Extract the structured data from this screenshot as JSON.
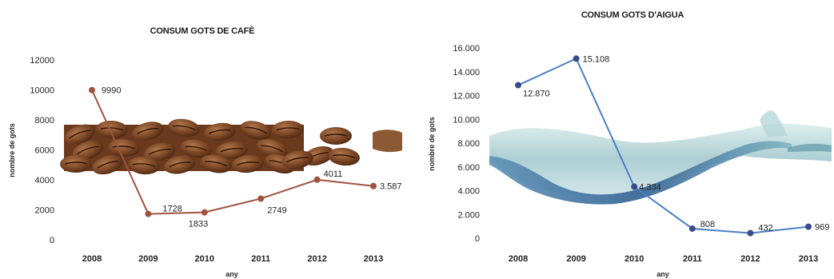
{
  "chart_data": [
    {
      "type": "line",
      "title": "CONSUM GOTS DE CAFÈ",
      "xlabel": "any",
      "ylabel": "nombre de gots",
      "categories": [
        "2008",
        "2009",
        "2010",
        "2011",
        "2012",
        "2013"
      ],
      "values": [
        9990,
        1728,
        1833,
        2749,
        4011,
        3587
      ],
      "data_labels": [
        "9990",
        "1728",
        "1833",
        "2749",
        "4011",
        "3.587"
      ],
      "ylim": [
        0,
        12000
      ],
      "y_ticks": [
        "0",
        "2000",
        "4000",
        "6000",
        "8000",
        "10000",
        "12000"
      ],
      "line_color": "#a0523f",
      "grid": false,
      "background_image": "coffee-beans"
    },
    {
      "type": "line",
      "title": "CONSUM GOTS D'AIGUA",
      "xlabel": "any",
      "ylabel": "nombre de gots",
      "categories": [
        "2008",
        "2009",
        "2010",
        "2011",
        "2012",
        "2013"
      ],
      "values": [
        12870,
        15108,
        4334,
        808,
        432,
        969
      ],
      "data_labels": [
        "12.870",
        "15.108",
        "4.334",
        "808",
        "432",
        "969"
      ],
      "ylim": [
        0,
        16000
      ],
      "y_ticks": [
        "0",
        "2.000",
        "4.000",
        "6.000",
        "8.000",
        "10.000",
        "12.000",
        "14.000",
        "16.000"
      ],
      "line_color": "#4a7fc4",
      "marker_color": "#3b4a8a",
      "grid": false,
      "background_image": "water-splash"
    }
  ]
}
